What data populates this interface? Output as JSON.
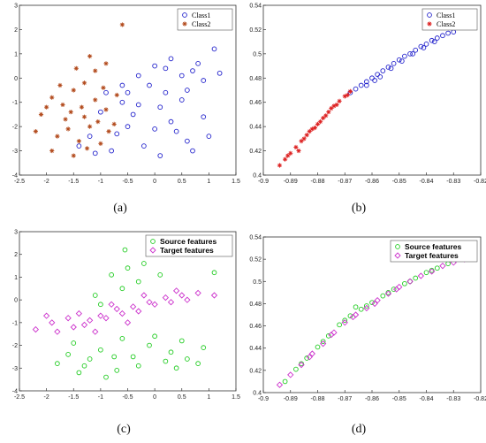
{
  "panels": [
    {
      "caption": "(a)"
    },
    {
      "caption": "(b)"
    },
    {
      "caption": "(c)"
    },
    {
      "caption": "(d)"
    }
  ],
  "chart_data": [
    {
      "type": "scatter",
      "panel": "a",
      "title": "",
      "xlabel": "",
      "ylabel": "",
      "xlim": [
        -2.5,
        1.5
      ],
      "ylim": [
        -4,
        3
      ],
      "xticks": [
        "-2.5",
        "-2",
        "-1.5",
        "-1",
        "-0.5",
        "0",
        "0.5",
        "1",
        "1.5"
      ],
      "yticks": [
        "3",
        "2",
        "1",
        "0",
        "-1",
        "-2",
        "-3",
        "-4"
      ],
      "legend_position": "top-right",
      "grid": false,
      "series": [
        {
          "name": "Class1",
          "color": "#2222cc",
          "marker": "circle",
          "points": [
            [
              -0.9,
              -0.6
            ],
            [
              -0.6,
              -0.3
            ],
            [
              -0.3,
              0.1
            ],
            [
              0,
              0.5
            ],
            [
              0.3,
              0.8
            ],
            [
              0.6,
              -0.5
            ],
            [
              0.9,
              -1.6
            ],
            [
              -0.5,
              -2
            ],
            [
              -0.2,
              -2.8
            ],
            [
              0.1,
              -1.2
            ],
            [
              0.4,
              -2.2
            ],
            [
              0.7,
              -3
            ],
            [
              1,
              -2.4
            ],
            [
              -1.2,
              -2.4
            ],
            [
              -0.8,
              -3
            ],
            [
              -0.4,
              -1.5
            ],
            [
              0.2,
              -0.6
            ],
            [
              0.5,
              0.1
            ],
            [
              0.8,
              0.6
            ],
            [
              1.1,
              1.2
            ],
            [
              -0.1,
              -0.3
            ],
            [
              0.3,
              -1.8
            ],
            [
              0.6,
              -2.6
            ],
            [
              -0.6,
              -1
            ],
            [
              -1,
              -1.4
            ],
            [
              -1.4,
              -2.8
            ],
            [
              -0.7,
              -2.3
            ],
            [
              0.9,
              -0.1
            ],
            [
              0.2,
              0.4
            ],
            [
              -0.3,
              -1.1
            ],
            [
              0,
              -2.1
            ],
            [
              0.5,
              -0.9
            ],
            [
              -0.5,
              -0.6
            ],
            [
              0.7,
              0.3
            ],
            [
              1.2,
              0.2
            ],
            [
              -1.1,
              -3.1
            ],
            [
              0.1,
              -3.2
            ]
          ]
        },
        {
          "name": "Class2",
          "color": "#b24a1c",
          "marker": "star",
          "points": [
            [
              -2.1,
              -1.5
            ],
            [
              -1.9,
              -0.8
            ],
            [
              -1.7,
              -1.1
            ],
            [
              -1.5,
              -0.5
            ],
            [
              -1.3,
              -1.6
            ],
            [
              -1.1,
              -0.9
            ],
            [
              -0.9,
              -1.3
            ],
            [
              -0.7,
              -0.7
            ],
            [
              -1.6,
              -2.1
            ],
            [
              -1.4,
              -2.6
            ],
            [
              -1.2,
              -2
            ],
            [
              -1,
              -2.7
            ],
            [
              -1.8,
              -2.4
            ],
            [
              -1.5,
              -3.2
            ],
            [
              -1.3,
              -0.2
            ],
            [
              -1.1,
              0.3
            ],
            [
              -0.9,
              0.6
            ],
            [
              -0.6,
              2.2
            ],
            [
              -1.2,
              0.9
            ],
            [
              -2,
              -1.2
            ],
            [
              -1.65,
              -1.7
            ],
            [
              -1.35,
              -1.2
            ],
            [
              -1.05,
              -1.8
            ],
            [
              -0.85,
              -2.2
            ],
            [
              -1.75,
              -0.3
            ],
            [
              -1.45,
              0.4
            ],
            [
              -1.25,
              -2.9
            ],
            [
              -0.95,
              -0.4
            ],
            [
              -1.55,
              -1.4
            ],
            [
              -2.2,
              -2.2
            ],
            [
              -0.75,
              -1.9
            ],
            [
              -1.9,
              -3
            ]
          ]
        }
      ]
    },
    {
      "type": "scatter",
      "panel": "b",
      "title": "",
      "xlabel": "",
      "ylabel": "",
      "xlim": [
        -0.9,
        -0.82
      ],
      "ylim": [
        0.4,
        0.54
      ],
      "xticks": [
        "-0.9",
        "-0.89",
        "-0.88",
        "-0.87",
        "-0.86",
        "-0.85",
        "-0.84",
        "-0.83",
        "-0.82"
      ],
      "yticks": [
        "0.54",
        "0.52",
        "0.5",
        "0.48",
        "0.46",
        "0.44",
        "0.42",
        "0.4"
      ],
      "legend_position": "top-right",
      "grid": false,
      "series": [
        {
          "name": "Class1",
          "color": "#2222cc",
          "marker": "circle",
          "points": [
            [
              -0.868,
              0.468
            ],
            [
              -0.866,
              0.471
            ],
            [
              -0.864,
              0.474
            ],
            [
              -0.862,
              0.477
            ],
            [
              -0.86,
              0.48
            ],
            [
              -0.858,
              0.483
            ],
            [
              -0.856,
              0.486
            ],
            [
              -0.854,
              0.489
            ],
            [
              -0.852,
              0.492
            ],
            [
              -0.85,
              0.495
            ],
            [
              -0.848,
              0.498
            ],
            [
              -0.846,
              0.5
            ],
            [
              -0.844,
              0.503
            ],
            [
              -0.842,
              0.506
            ],
            [
              -0.84,
              0.508
            ],
            [
              -0.838,
              0.511
            ],
            [
              -0.836,
              0.513
            ],
            [
              -0.834,
              0.515
            ],
            [
              -0.832,
              0.517
            ],
            [
              -0.83,
              0.518
            ],
            [
              -0.857,
              0.481
            ],
            [
              -0.853,
              0.488
            ],
            [
              -0.849,
              0.494
            ],
            [
              -0.845,
              0.5
            ],
            [
              -0.841,
              0.505
            ],
            [
              -0.837,
              0.51
            ],
            [
              -0.862,
              0.474
            ],
            [
              -0.859,
              0.478
            ]
          ]
        },
        {
          "name": "Class2",
          "color": "#dd2222",
          "marker": "star",
          "points": [
            [
              -0.894,
              0.408
            ],
            [
              -0.892,
              0.413
            ],
            [
              -0.89,
              0.418
            ],
            [
              -0.888,
              0.423
            ],
            [
              -0.886,
              0.428
            ],
            [
              -0.884,
              0.433
            ],
            [
              -0.882,
              0.438
            ],
            [
              -0.88,
              0.442
            ],
            [
              -0.878,
              0.447
            ],
            [
              -0.876,
              0.452
            ],
            [
              -0.874,
              0.457
            ],
            [
              -0.872,
              0.461
            ],
            [
              -0.87,
              0.465
            ],
            [
              -0.868,
              0.469
            ],
            [
              -0.885,
              0.43
            ],
            [
              -0.881,
              0.439
            ],
            [
              -0.877,
              0.449
            ],
            [
              -0.873,
              0.458
            ],
            [
              -0.887,
              0.42
            ],
            [
              -0.879,
              0.444
            ],
            [
              -0.891,
              0.416
            ],
            [
              -0.883,
              0.436
            ],
            [
              -0.875,
              0.455
            ],
            [
              -0.869,
              0.466
            ]
          ]
        }
      ]
    },
    {
      "type": "scatter",
      "panel": "c",
      "title": "",
      "xlabel": "",
      "ylabel": "",
      "xlim": [
        -2.5,
        1.5
      ],
      "ylim": [
        -4,
        3
      ],
      "xticks": [
        "-2.5",
        "-2",
        "-1.5",
        "-1",
        "-0.5",
        "0",
        "0.5",
        "1",
        "1.5"
      ],
      "yticks": [
        "3",
        "2",
        "1",
        "0",
        "-1",
        "-2",
        "-3",
        "-4"
      ],
      "legend_position": "top-right",
      "grid": false,
      "series": [
        {
          "name": "Source features",
          "color": "#22cc22",
          "marker": "circle",
          "points": [
            [
              -1.6,
              -2.4
            ],
            [
              -1.3,
              -2.9
            ],
            [
              -1,
              -2.2
            ],
            [
              -0.7,
              -3.1
            ],
            [
              -0.4,
              -2.5
            ],
            [
              -0.1,
              -2
            ],
            [
              0.2,
              -2.7
            ],
            [
              0.5,
              -1.8
            ],
            [
              0.8,
              -2.8
            ],
            [
              -1.5,
              -1.9
            ],
            [
              -1.2,
              -2.6
            ],
            [
              -0.9,
              -3.4
            ],
            [
              -0.6,
              -1.7
            ],
            [
              -0.3,
              -2.9
            ],
            [
              0,
              -1.6
            ],
            [
              0.3,
              -2.3
            ],
            [
              0.6,
              -2.6
            ],
            [
              -1.1,
              0.2
            ],
            [
              -0.8,
              1.1
            ],
            [
              -0.5,
              1.4
            ],
            [
              -0.2,
              1.6
            ],
            [
              0.1,
              1.1
            ],
            [
              -0.3,
              0.8
            ],
            [
              -0.6,
              0.5
            ],
            [
              -1,
              -0.2
            ],
            [
              -0.55,
              2.2
            ],
            [
              1.1,
              1.2
            ],
            [
              -1.8,
              -2.8
            ],
            [
              -1.4,
              -3.2
            ],
            [
              -0.75,
              -2.5
            ],
            [
              0.4,
              -3
            ],
            [
              0.9,
              -2.1
            ]
          ]
        },
        {
          "name": "Target features",
          "color": "#cc33cc",
          "marker": "diamond",
          "points": [
            [
              -2.2,
              -1.3
            ],
            [
              -1.9,
              -1
            ],
            [
              -1.6,
              -0.8
            ],
            [
              -1.3,
              -1.1
            ],
            [
              -1,
              -0.7
            ],
            [
              -0.7,
              -0.4
            ],
            [
              -0.4,
              -0.3
            ],
            [
              -0.1,
              -0.1
            ],
            [
              0.2,
              0.1
            ],
            [
              0.5,
              0.2
            ],
            [
              0.8,
              0.3
            ],
            [
              1.1,
              0.2
            ],
            [
              -1.8,
              -1.4
            ],
            [
              -1.5,
              -1.2
            ],
            [
              -1.2,
              -0.9
            ],
            [
              -0.9,
              -0.8
            ],
            [
              -0.6,
              -0.6
            ],
            [
              -0.3,
              -0.5
            ],
            [
              0,
              -0.2
            ],
            [
              0.3,
              -0.1
            ],
            [
              0.6,
              0
            ],
            [
              -2,
              -0.7
            ],
            [
              -1.4,
              -0.6
            ],
            [
              -0.8,
              -0.2
            ],
            [
              -0.2,
              0.2
            ],
            [
              0.4,
              0.4
            ],
            [
              -1.1,
              -1.4
            ],
            [
              -0.5,
              -1
            ]
          ]
        }
      ]
    },
    {
      "type": "scatter",
      "panel": "d",
      "title": "",
      "xlabel": "",
      "ylabel": "",
      "xlim": [
        -0.9,
        -0.82
      ],
      "ylim": [
        0.4,
        0.54
      ],
      "xticks": [
        "-0.9",
        "-0.89",
        "-0.88",
        "-0.87",
        "-0.86",
        "-0.85",
        "-0.84",
        "-0.83",
        "-0.82"
      ],
      "yticks": [
        "0.54",
        "0.52",
        "0.5",
        "0.48",
        "0.46",
        "0.44",
        "0.42",
        "0.4"
      ],
      "legend_position": "top-right",
      "grid": false,
      "series": [
        {
          "name": "Source features",
          "color": "#22cc22",
          "marker": "circle",
          "points": [
            [
              -0.892,
              0.41
            ],
            [
              -0.888,
              0.421
            ],
            [
              -0.884,
              0.431
            ],
            [
              -0.88,
              0.441
            ],
            [
              -0.876,
              0.451
            ],
            [
              -0.872,
              0.461
            ],
            [
              -0.868,
              0.469
            ],
            [
              -0.864,
              0.475
            ],
            [
              -0.86,
              0.481
            ],
            [
              -0.856,
              0.487
            ],
            [
              -0.852,
              0.493
            ],
            [
              -0.848,
              0.498
            ],
            [
              -0.844,
              0.503
            ],
            [
              -0.84,
              0.508
            ],
            [
              -0.836,
              0.512
            ],
            [
              -0.832,
              0.516
            ],
            [
              -0.886,
              0.426
            ],
            [
              -0.878,
              0.446
            ],
            [
              -0.87,
              0.465
            ],
            [
              -0.862,
              0.478
            ],
            [
              -0.854,
              0.49
            ],
            [
              -0.846,
              0.5
            ],
            [
              -0.838,
              0.51
            ],
            [
              -0.866,
              0.477
            ]
          ]
        },
        {
          "name": "Target features",
          "color": "#cc33cc",
          "marker": "diamond",
          "points": [
            [
              -0.894,
              0.407
            ],
            [
              -0.89,
              0.416
            ],
            [
              -0.886,
              0.425
            ],
            [
              -0.882,
              0.435
            ],
            [
              -0.878,
              0.444
            ],
            [
              -0.874,
              0.454
            ],
            [
              -0.87,
              0.463
            ],
            [
              -0.866,
              0.47
            ],
            [
              -0.862,
              0.476
            ],
            [
              -0.858,
              0.483
            ],
            [
              -0.854,
              0.489
            ],
            [
              -0.85,
              0.495
            ],
            [
              -0.846,
              0.5
            ],
            [
              -0.842,
              0.505
            ],
            [
              -0.838,
              0.509
            ],
            [
              -0.834,
              0.514
            ],
            [
              -0.83,
              0.517
            ],
            [
              -0.826,
              0.52
            ],
            [
              -0.883,
              0.432
            ],
            [
              -0.875,
              0.452
            ],
            [
              -0.867,
              0.468
            ],
            [
              -0.859,
              0.48
            ],
            [
              -0.851,
              0.493
            ]
          ]
        }
      ]
    }
  ]
}
